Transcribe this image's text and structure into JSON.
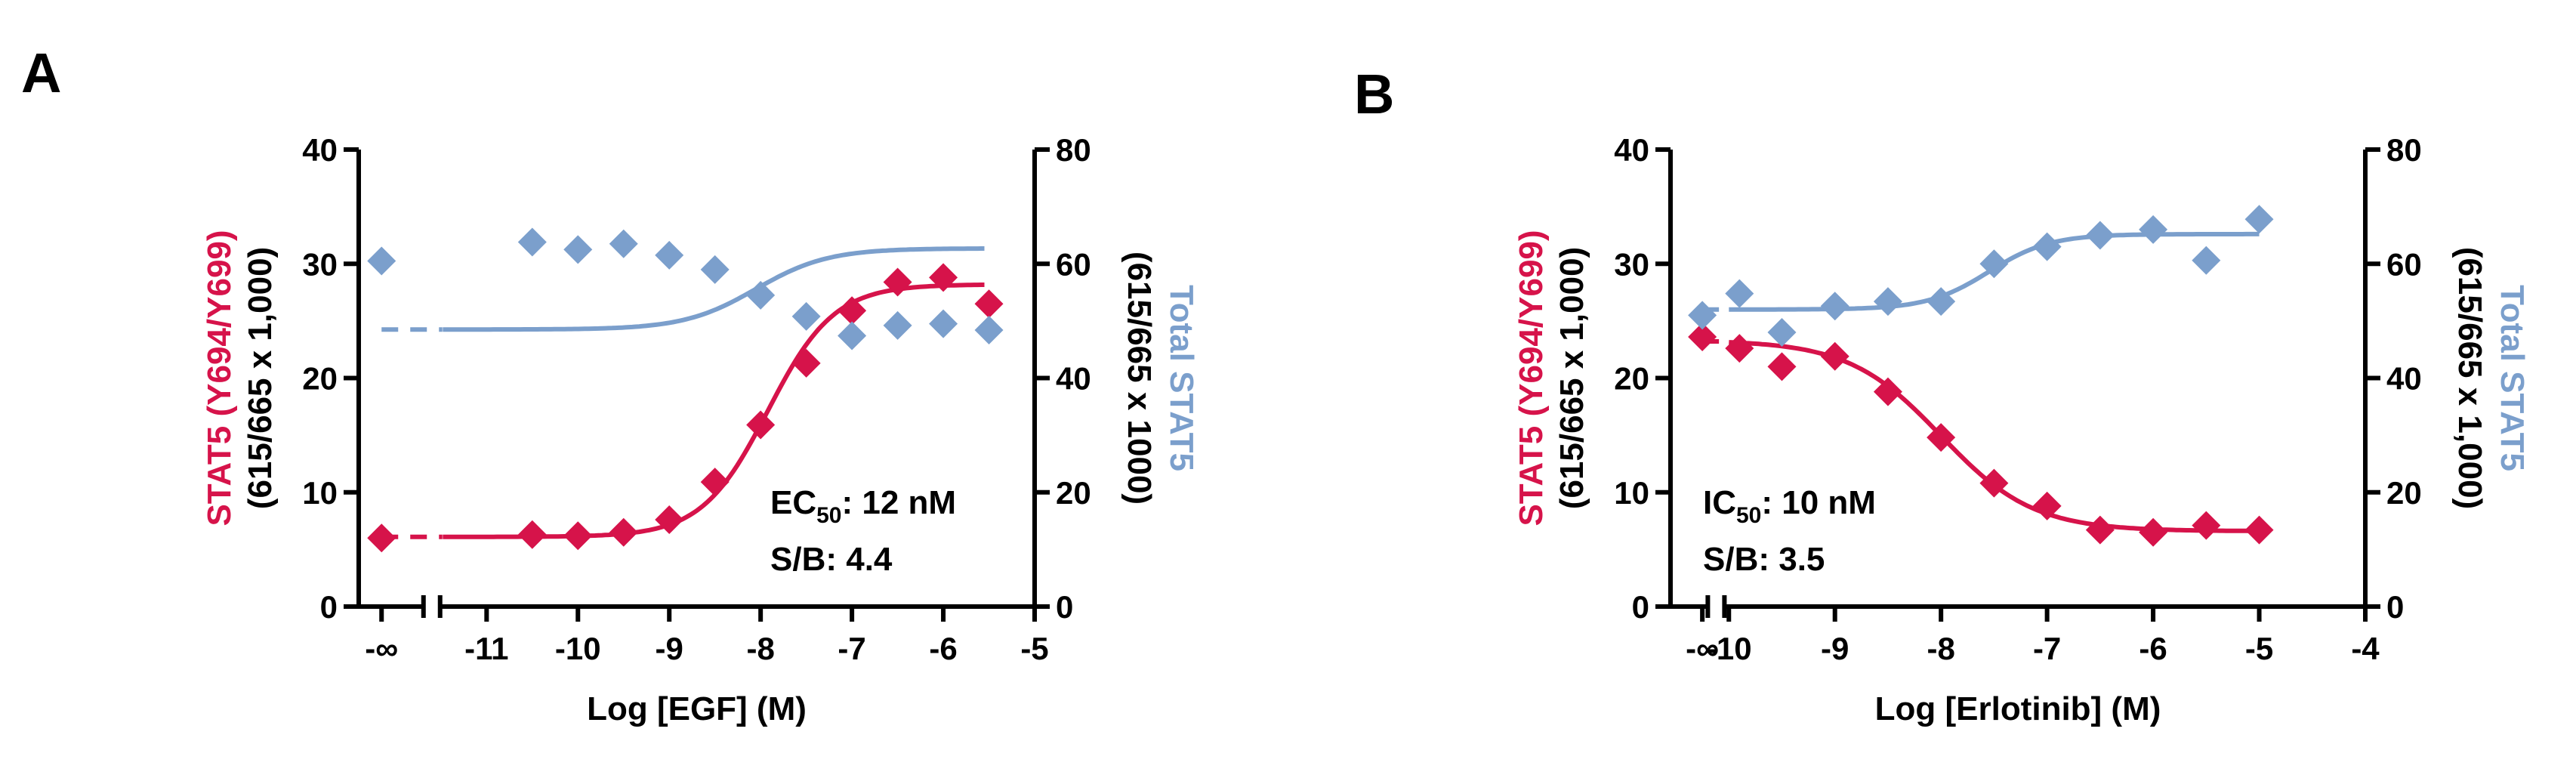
{
  "colors": {
    "phospho": "#d6134a",
    "total": "#7b9fcc",
    "axis": "#000000"
  },
  "chart_data": [
    {
      "panel": "A",
      "type": "scatter",
      "xlabel": "Log [EGF] (M)",
      "xlim": [
        -12.4,
        -5
      ],
      "x_break": true,
      "x_ticks": [
        {
          "v": -12.15,
          "label": "-∞"
        },
        {
          "v": -11,
          "label": "-11"
        },
        {
          "v": -10,
          "label": "-10"
        },
        {
          "v": -9,
          "label": "-9"
        },
        {
          "v": -8,
          "label": "-8"
        },
        {
          "v": -7,
          "label": "-7"
        },
        {
          "v": -6,
          "label": "-6"
        },
        {
          "v": -5,
          "label": "-5"
        }
      ],
      "y_left": {
        "label_colored": "STAT5 (Y694/Y699)",
        "label_black": "(615/665 x 1,000)",
        "lim": [
          0,
          40
        ],
        "ticks": [
          "0",
          "10",
          "20",
          "30",
          "40"
        ]
      },
      "y_right": {
        "label_colored": "Total STAT5",
        "label_black": "(615/665 x 1000)",
        "lim": [
          0,
          80
        ],
        "ticks": [
          "0",
          "20",
          "40",
          "60",
          "80"
        ]
      },
      "series": [
        {
          "name": "STAT5 (Y694/Y699)",
          "axis": "left",
          "color_key": "phospho",
          "x": [
            -12.15,
            -10.5,
            -10,
            -9.5,
            -9,
            -8.5,
            -8,
            -7.5,
            -7,
            -6.5,
            -6,
            -5.5
          ],
          "y": [
            6.0,
            6.3,
            6.2,
            6.5,
            7.6,
            10.9,
            15.9,
            21.3,
            25.9,
            28.4,
            28.8,
            26.5
          ],
          "curve": {
            "bottom": 6.1,
            "top": 28.2,
            "logEC50": -7.92,
            "hill": 1.2,
            "x_end": -5.55
          }
        },
        {
          "name": "Total STAT5",
          "axis": "right",
          "color_key": "total",
          "x": [
            -12.15,
            -10.5,
            -10,
            -9.5,
            -9,
            -8.5,
            -8,
            -7.5,
            -7,
            -6.5,
            -6,
            -5.5
          ],
          "y": [
            60.5,
            63.8,
            62.5,
            63.5,
            61.5,
            59.0,
            54.5,
            50.8,
            47.4,
            49.2,
            49.5,
            48.4
          ],
          "curve": {
            "bottom": 48.5,
            "top": 62.7,
            "logEC50": -8.05,
            "hill": 1.1,
            "x_end": -5.55
          }
        }
      ],
      "annotation": {
        "metric": "EC",
        "metric_sub": "50",
        "metric_value": ": 12 nM",
        "sb": "S/B: 4.4"
      }
    },
    {
      "panel": "B",
      "type": "scatter",
      "xlabel": "Log [Erlotinib] (M)",
      "xlim": [
        -10.55,
        -4
      ],
      "x_break": true,
      "x_ticks": [
        {
          "v": -10.25,
          "label": "-∞"
        },
        {
          "v": -10,
          "label": "-10"
        },
        {
          "v": -9,
          "label": "-9"
        },
        {
          "v": -8,
          "label": "-8"
        },
        {
          "v": -7,
          "label": "-7"
        },
        {
          "v": -6,
          "label": "-6"
        },
        {
          "v": -5,
          "label": "-5"
        },
        {
          "v": -4,
          "label": "-4"
        }
      ],
      "y_left": {
        "label_colored": "STAT5 (Y694/Y699)",
        "label_black": "(615/665 x 1,000)",
        "lim": [
          0,
          40
        ],
        "ticks": [
          "0",
          "10",
          "20",
          "30",
          "40"
        ]
      },
      "y_right": {
        "label_colored": "Total STAT5",
        "label_black": "(615/665 x 1,000)",
        "lim": [
          0,
          80
        ],
        "ticks": [
          "0",
          "20",
          "40",
          "60",
          "80"
        ]
      },
      "series": [
        {
          "name": "STAT5 (Y694/Y699)",
          "axis": "left",
          "color_key": "phospho",
          "x": [
            -10.25,
            -9.9,
            -9.5,
            -9,
            -8.5,
            -8,
            -7.5,
            -7,
            -6.5,
            -6,
            -5.5,
            -5
          ],
          "y": [
            23.6,
            22.6,
            21.0,
            21.9,
            18.8,
            14.8,
            10.8,
            8.8,
            6.7,
            6.5,
            7.1,
            6.7
          ],
          "curve": {
            "bottom": 6.6,
            "top": 23.3,
            "logEC50": -8.0,
            "hill": -1.0,
            "x_end": -5.0
          }
        },
        {
          "name": "Total STAT5",
          "axis": "right",
          "color_key": "total",
          "x": [
            -10.25,
            -9.9,
            -9.5,
            -9,
            -8.5,
            -8,
            -7.5,
            -7,
            -6.5,
            -6,
            -5.5,
            -5
          ],
          "y": [
            51.0,
            54.8,
            48.0,
            52.6,
            53.4,
            53.4,
            60.0,
            63.0,
            65.0,
            66.0,
            60.6,
            67.8
          ],
          "curve": {
            "bottom": 52.0,
            "top": 65.2,
            "logEC50": -7.55,
            "hill": 1.5,
            "x_end": -5.0
          }
        }
      ],
      "annotation": {
        "metric": "IC",
        "metric_sub": "50",
        "metric_value": ": 10 nM",
        "sb": "S/B: 3.5"
      }
    }
  ]
}
